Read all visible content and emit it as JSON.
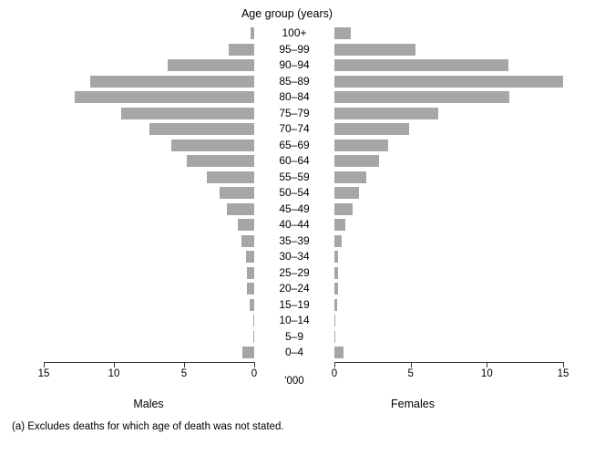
{
  "colors": {
    "bar": "#a6a6a6",
    "axis": "#333333",
    "text": "#000000"
  },
  "footnote": "(a) Excludes deaths for which age of death was not stated.",
  "chart_data": {
    "type": "bar",
    "subtype": "population-pyramid",
    "title": "Age group (years)",
    "unit_label": "'000",
    "xlabel": "'000",
    "ylabel": "Age group (years)",
    "grid": false,
    "x_axis": {
      "ticks": [
        0,
        5,
        10,
        15
      ],
      "min": 0,
      "max": 15
    },
    "categories": [
      "100+",
      "95–99",
      "90–94",
      "85–89",
      "80–84",
      "75–79",
      "70–74",
      "65–69",
      "60–64",
      "55–59",
      "50–54",
      "45–49",
      "40–44",
      "35–39",
      "30–34",
      "25–29",
      "20–24",
      "15–19",
      "10–14",
      "5–9",
      "0–4"
    ],
    "series": [
      {
        "name": "Males",
        "side": "left",
        "values": [
          0.25,
          1.8,
          6.2,
          11.7,
          12.8,
          9.5,
          7.5,
          5.9,
          4.8,
          3.4,
          2.5,
          1.95,
          1.2,
          0.9,
          0.6,
          0.55,
          0.5,
          0.3,
          0.08,
          0.08,
          0.85
        ]
      },
      {
        "name": "Females",
        "side": "right",
        "values": [
          1.1,
          5.3,
          11.4,
          15.0,
          11.5,
          6.8,
          4.9,
          3.5,
          2.9,
          2.1,
          1.6,
          1.2,
          0.7,
          0.5,
          0.25,
          0.25,
          0.25,
          0.2,
          0.08,
          0.08,
          0.6
        ]
      }
    ]
  }
}
